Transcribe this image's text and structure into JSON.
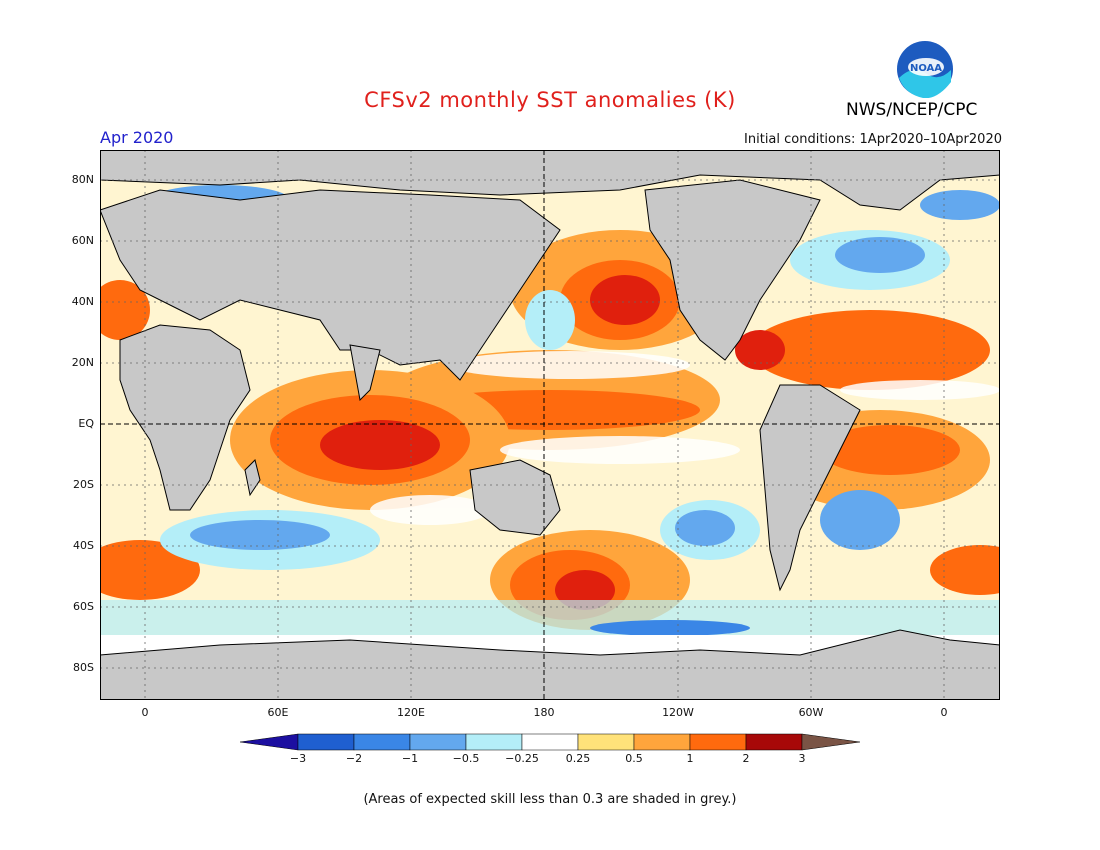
{
  "header": {
    "title": "CFSv2 monthly SST anomalies (K)",
    "agency": "NWS/NCEP/CPC",
    "logo_text": "NOAA",
    "month": "Apr 2020",
    "initial_conditions": "Initial conditions: 1Apr2020–10Apr2020"
  },
  "map": {
    "lat_labels": [
      "80N",
      "60N",
      "40N",
      "20N",
      "EQ",
      "20S",
      "40S",
      "60S",
      "80S"
    ],
    "lon_labels": [
      "0",
      "60E",
      "120E",
      "180",
      "120W",
      "60W",
      "0"
    ],
    "land_color": "#c8c8c8",
    "grid": "dotted"
  },
  "colorbar": {
    "labels": [
      "−3",
      "−2",
      "−1",
      "−0.5",
      "−0.25",
      "0.25",
      "0.5",
      "1",
      "2",
      "3"
    ],
    "colors": [
      "#1c0fa0",
      "#1f5fd0",
      "#3a86e6",
      "#63a8ee",
      "#b4eef8",
      "#ffffff",
      "#ffe27a",
      "#ffa53c",
      "#ff6a0e",
      "#e0200d",
      "#a70808",
      "#7a5445"
    ]
  },
  "footnote": "(Areas of expected skill less than 0.3 are shaded in grey.)"
}
